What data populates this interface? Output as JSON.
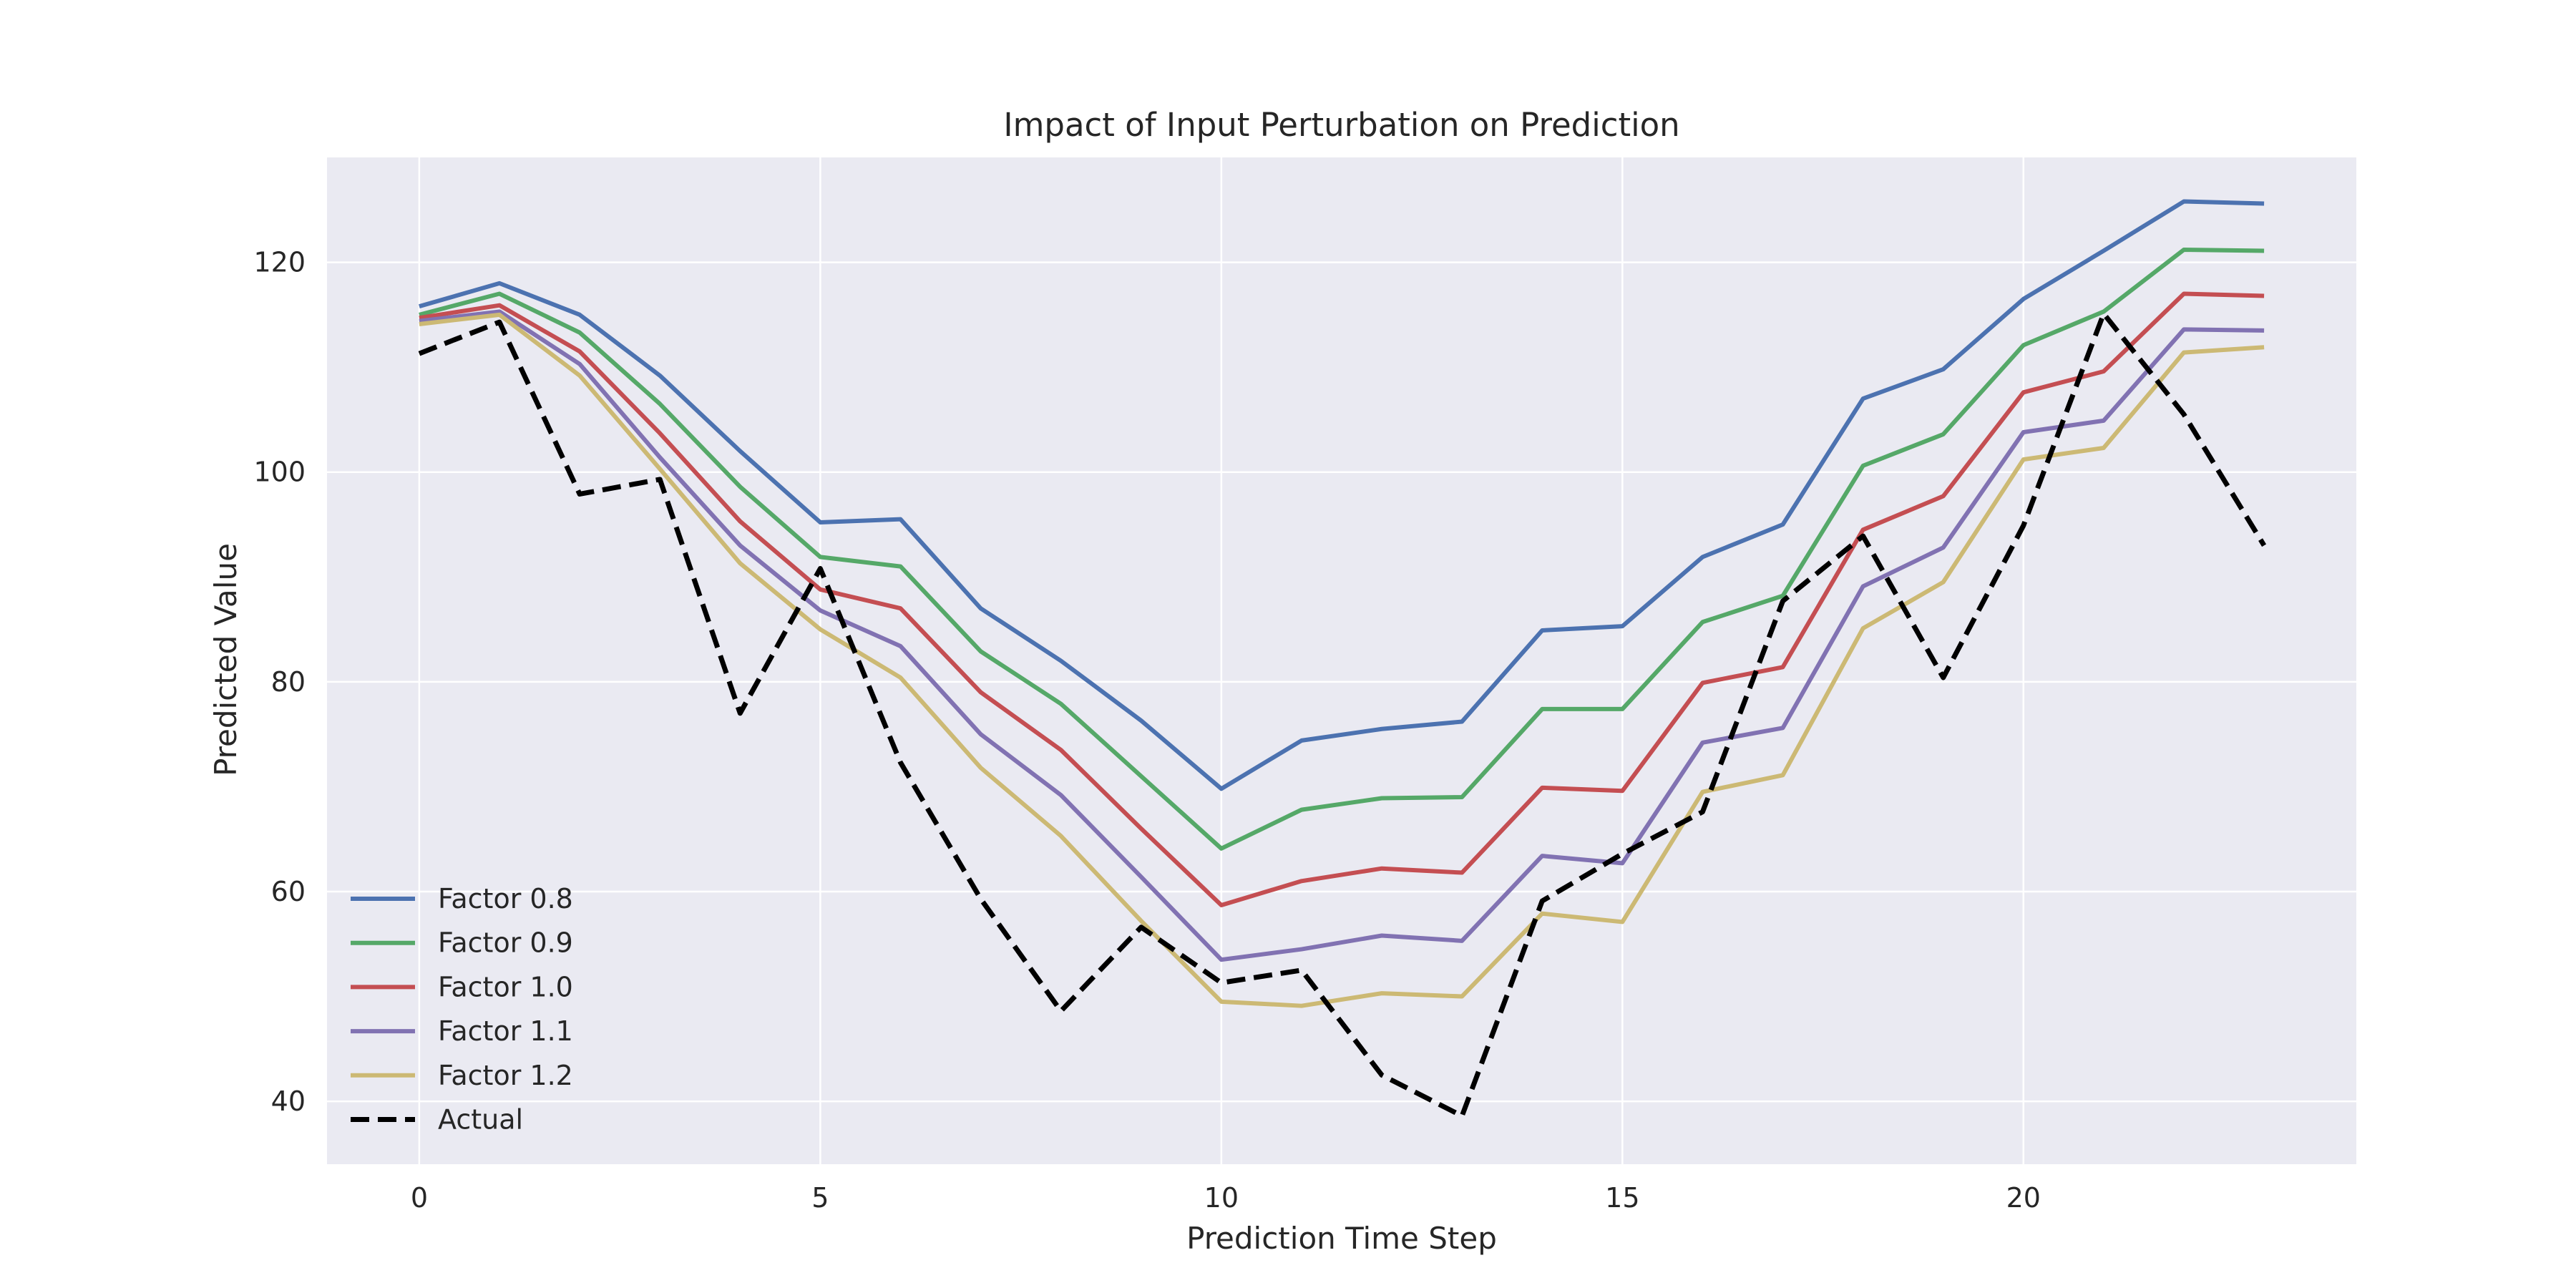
{
  "chart_data": {
    "type": "line",
    "title": "Impact of Input Perturbation on Prediction",
    "xlabel": "Prediction Time Step",
    "ylabel": "Predicted Value",
    "xlim": [
      -1.15,
      24.15
    ],
    "ylim": [
      34,
      130
    ],
    "xticks": [
      0,
      5,
      10,
      15,
      20
    ],
    "yticks": [
      40,
      60,
      80,
      100,
      120
    ],
    "grid": true,
    "legend_position": "lower-left",
    "background_color": "#eaeaf2",
    "grid_color": "#ffffff",
    "x": [
      0,
      1,
      2,
      3,
      4,
      5,
      6,
      7,
      8,
      9,
      10,
      11,
      12,
      13,
      14,
      15,
      16,
      17,
      18,
      19,
      20,
      21,
      22,
      23
    ],
    "series": [
      {
        "name": "Factor 0.8",
        "color": "#4c72b0",
        "dashed": false,
        "values": [
          115.8,
          118.0,
          115.0,
          109.2,
          102.0,
          95.2,
          95.5,
          87.0,
          82.0,
          76.3,
          69.8,
          74.4,
          75.5,
          76.2,
          84.9,
          85.3,
          91.9,
          95.0,
          107.0,
          109.8,
          116.5,
          121.1,
          125.8,
          125.6
        ]
      },
      {
        "name": "Factor 0.9",
        "color": "#55a868",
        "dashed": false,
        "values": [
          115.0,
          117.0,
          113.3,
          106.5,
          98.6,
          91.9,
          91.0,
          82.9,
          77.9,
          71.0,
          64.1,
          67.8,
          68.9,
          69.0,
          77.4,
          77.4,
          85.7,
          88.2,
          100.6,
          103.6,
          112.1,
          115.3,
          121.2,
          121.1
        ]
      },
      {
        "name": "Factor 1.0",
        "color": "#c44e52",
        "dashed": false,
        "values": [
          114.7,
          115.9,
          111.5,
          103.7,
          95.3,
          88.8,
          87.0,
          79.0,
          73.5,
          66.0,
          58.7,
          61.0,
          62.2,
          61.8,
          69.9,
          69.6,
          79.9,
          81.4,
          94.5,
          97.7,
          107.6,
          109.6,
          117.0,
          116.8
        ]
      },
      {
        "name": "Factor 1.1",
        "color": "#8172b2",
        "dashed": false,
        "values": [
          114.4,
          115.3,
          110.3,
          101.4,
          93.0,
          86.8,
          83.4,
          75.0,
          69.2,
          61.4,
          53.5,
          54.5,
          55.8,
          55.3,
          63.4,
          62.7,
          74.2,
          75.6,
          89.1,
          92.8,
          103.8,
          104.9,
          113.6,
          113.5
        ]
      },
      {
        "name": "Factor 1.2",
        "color": "#ccb974",
        "dashed": false,
        "values": [
          114.1,
          115.0,
          109.2,
          100.3,
          91.3,
          85.0,
          80.4,
          71.8,
          65.3,
          57.2,
          49.5,
          49.1,
          50.3,
          50.0,
          57.9,
          57.1,
          69.5,
          71.1,
          85.1,
          89.5,
          101.2,
          102.3,
          111.4,
          111.9
        ]
      },
      {
        "name": "Actual",
        "color": "#000000",
        "dashed": true,
        "values": [
          111.3,
          114.3,
          97.9,
          99.3,
          77.0,
          90.8,
          72.3,
          59.3,
          48.6,
          56.6,
          51.3,
          52.5,
          42.5,
          38.6,
          59.1,
          63.6,
          67.6,
          87.7,
          93.9,
          80.4,
          94.9,
          115.1,
          105.5,
          93.0
        ]
      }
    ]
  }
}
